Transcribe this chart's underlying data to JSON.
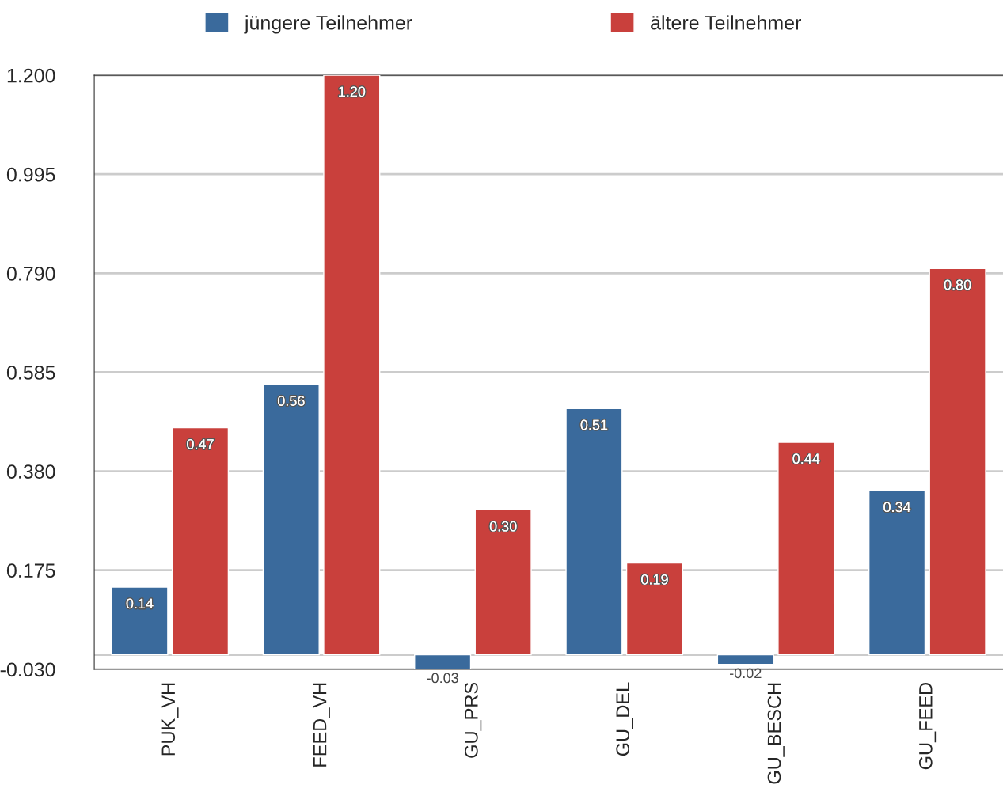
{
  "chart_data": {
    "type": "bar",
    "categories": [
      "PUK_VH",
      "FEED_VH",
      "GU_PRS",
      "GU_DEL",
      "GU_BESCH",
      "GU_FEED"
    ],
    "series": [
      {
        "name": "jüngere Teilnehmer",
        "color": "#3a6a9c",
        "values": [
          0.14,
          0.56,
          -0.03,
          0.51,
          -0.02,
          0.34
        ],
        "value_labels": [
          "0.14",
          "0.56",
          "-0.03",
          "0.51",
          "-0.02",
          "0.34"
        ]
      },
      {
        "name": "ältere Teilnehmer",
        "color": "#c9403c",
        "values": [
          0.47,
          1.2,
          0.3,
          0.19,
          0.44,
          0.8
        ],
        "value_labels": [
          "0.47",
          "1.20",
          "0.30",
          "0.19",
          "0.44",
          "0.80"
        ]
      }
    ],
    "ylim": [
      -0.03,
      1.2
    ],
    "yticks": [
      {
        "value": -0.03,
        "label": "-0.030"
      },
      {
        "value": 0.175,
        "label": "0.175"
      },
      {
        "value": 0.38,
        "label": "0.380"
      },
      {
        "value": 0.585,
        "label": "0.585"
      },
      {
        "value": 0.79,
        "label": "0.790"
      },
      {
        "value": 0.995,
        "label": "0.995"
      },
      {
        "value": 1.2,
        "label": "1.200"
      }
    ],
    "grid": "y",
    "legend": "top"
  }
}
